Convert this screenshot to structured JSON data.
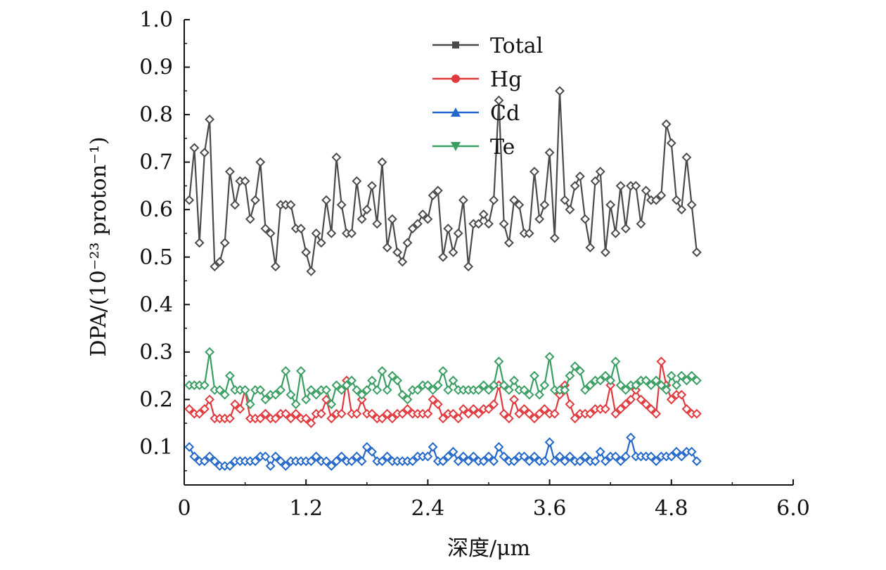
{
  "chart_data": {
    "type": "line",
    "xlabel": "深度/μm",
    "ylabel": "DPA/(10⁻²³ proton⁻¹)",
    "xlim": [
      0,
      6.0
    ],
    "ylim": [
      0.02,
      1.0
    ],
    "xticks": [
      "0",
      "1.2",
      "2.4",
      "3.6",
      "4.8",
      "6.0"
    ],
    "yticks": [
      "0.1",
      "0.2",
      "0.3",
      "0.4",
      "0.5",
      "0.6",
      "0.7",
      "0.8",
      "0.9",
      "1.0"
    ],
    "legend_position": "top-center",
    "x_start": 0.05,
    "x_step": 0.05,
    "series": [
      {
        "name": "Total",
        "color": "#4a4a4a",
        "marker": "square",
        "values": [
          0.62,
          0.73,
          0.53,
          0.72,
          0.79,
          0.48,
          0.49,
          0.53,
          0.68,
          0.61,
          0.66,
          0.66,
          0.58,
          0.62,
          0.7,
          0.56,
          0.55,
          0.48,
          0.61,
          0.61,
          0.61,
          0.56,
          0.56,
          0.51,
          0.47,
          0.55,
          0.53,
          0.62,
          0.55,
          0.71,
          0.61,
          0.55,
          0.55,
          0.66,
          0.58,
          0.6,
          0.65,
          0.57,
          0.7,
          0.52,
          0.58,
          0.51,
          0.49,
          0.53,
          0.56,
          0.57,
          0.59,
          0.58,
          0.63,
          0.64,
          0.5,
          0.56,
          0.51,
          0.55,
          0.62,
          0.48,
          0.57,
          0.57,
          0.59,
          0.57,
          0.62,
          0.83,
          0.57,
          0.53,
          0.62,
          0.61,
          0.55,
          0.55,
          0.68,
          0.58,
          0.61,
          0.72,
          0.54,
          0.85,
          0.62,
          0.6,
          0.65,
          0.67,
          0.58,
          0.52,
          0.66,
          0.68,
          0.51,
          0.61,
          0.55,
          0.65,
          0.56,
          0.65,
          0.65,
          0.57,
          0.64,
          0.62,
          0.62,
          0.63,
          0.78,
          0.74,
          0.62,
          0.6,
          0.71,
          0.61,
          0.51
        ]
      },
      {
        "name": "Hg",
        "color": "#e0393e",
        "marker": "circle",
        "values": [
          0.18,
          0.17,
          0.17,
          0.18,
          0.2,
          0.16,
          0.16,
          0.16,
          0.16,
          0.19,
          0.18,
          0.22,
          0.16,
          0.16,
          0.16,
          0.17,
          0.16,
          0.16,
          0.17,
          0.17,
          0.16,
          0.17,
          0.16,
          0.16,
          0.15,
          0.17,
          0.17,
          0.2,
          0.16,
          0.17,
          0.17,
          0.24,
          0.17,
          0.17,
          0.2,
          0.17,
          0.17,
          0.16,
          0.16,
          0.17,
          0.16,
          0.17,
          0.17,
          0.18,
          0.17,
          0.17,
          0.17,
          0.17,
          0.2,
          0.19,
          0.16,
          0.17,
          0.17,
          0.16,
          0.18,
          0.17,
          0.18,
          0.17,
          0.18,
          0.18,
          0.19,
          0.23,
          0.17,
          0.16,
          0.2,
          0.17,
          0.18,
          0.17,
          0.16,
          0.17,
          0.18,
          0.17,
          0.17,
          0.21,
          0.23,
          0.19,
          0.16,
          0.17,
          0.17,
          0.17,
          0.18,
          0.18,
          0.18,
          0.23,
          0.17,
          0.18,
          0.19,
          0.2,
          0.22,
          0.2,
          0.19,
          0.18,
          0.17,
          0.28,
          0.23,
          0.2,
          0.21,
          0.21,
          0.18,
          0.17,
          0.17
        ]
      },
      {
        "name": "Cd",
        "color": "#2267c9",
        "marker": "triangle-up",
        "values": [
          0.1,
          0.08,
          0.07,
          0.07,
          0.08,
          0.07,
          0.06,
          0.06,
          0.06,
          0.07,
          0.07,
          0.07,
          0.07,
          0.07,
          0.08,
          0.08,
          0.06,
          0.08,
          0.07,
          0.06,
          0.07,
          0.07,
          0.07,
          0.07,
          0.07,
          0.08,
          0.07,
          0.07,
          0.06,
          0.07,
          0.08,
          0.07,
          0.07,
          0.08,
          0.07,
          0.1,
          0.09,
          0.07,
          0.07,
          0.08,
          0.07,
          0.07,
          0.07,
          0.07,
          0.07,
          0.08,
          0.08,
          0.08,
          0.1,
          0.07,
          0.07,
          0.08,
          0.09,
          0.07,
          0.08,
          0.07,
          0.08,
          0.07,
          0.07,
          0.08,
          0.07,
          0.1,
          0.08,
          0.07,
          0.07,
          0.08,
          0.08,
          0.07,
          0.08,
          0.07,
          0.07,
          0.11,
          0.07,
          0.08,
          0.07,
          0.08,
          0.07,
          0.07,
          0.08,
          0.07,
          0.07,
          0.09,
          0.07,
          0.08,
          0.08,
          0.07,
          0.08,
          0.12,
          0.08,
          0.08,
          0.08,
          0.08,
          0.07,
          0.08,
          0.08,
          0.08,
          0.09,
          0.08,
          0.09,
          0.09,
          0.07
        ]
      },
      {
        "name": "Te",
        "color": "#3a9e63",
        "marker": "triangle-down",
        "values": [
          0.23,
          0.23,
          0.23,
          0.23,
          0.3,
          0.22,
          0.22,
          0.21,
          0.25,
          0.22,
          0.22,
          0.22,
          0.19,
          0.22,
          0.22,
          0.2,
          0.21,
          0.21,
          0.22,
          0.26,
          0.21,
          0.19,
          0.26,
          0.2,
          0.22,
          0.21,
          0.22,
          0.22,
          0.19,
          0.23,
          0.22,
          0.23,
          0.24,
          0.22,
          0.21,
          0.22,
          0.24,
          0.22,
          0.26,
          0.22,
          0.25,
          0.24,
          0.21,
          0.2,
          0.22,
          0.22,
          0.23,
          0.23,
          0.22,
          0.23,
          0.26,
          0.22,
          0.24,
          0.22,
          0.22,
          0.22,
          0.22,
          0.22,
          0.23,
          0.22,
          0.23,
          0.28,
          0.23,
          0.22,
          0.24,
          0.22,
          0.22,
          0.21,
          0.25,
          0.21,
          0.23,
          0.29,
          0.22,
          0.22,
          0.22,
          0.25,
          0.27,
          0.26,
          0.22,
          0.23,
          0.24,
          0.24,
          0.25,
          0.24,
          0.28,
          0.23,
          0.22,
          0.23,
          0.23,
          0.24,
          0.24,
          0.23,
          0.24,
          0.23,
          0.22,
          0.25,
          0.23,
          0.25,
          0.24,
          0.25,
          0.24
        ]
      }
    ]
  }
}
